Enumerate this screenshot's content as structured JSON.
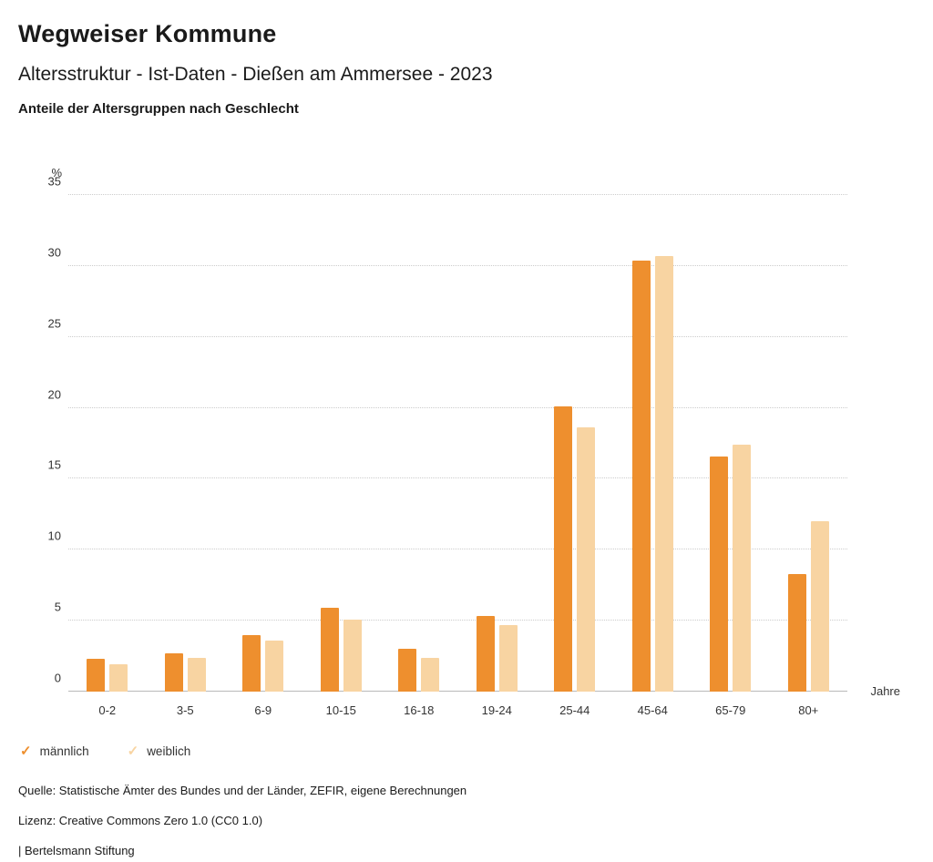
{
  "header": {
    "title": "Wegweiser Kommune",
    "subtitle": "Altersstruktur - Ist-Daten - Dießen am Ammersee - 2023",
    "caption": "Anteile der Altersgruppen nach Geschlecht"
  },
  "chart_data": {
    "type": "bar",
    "categories": [
      "0-2",
      "3-5",
      "6-9",
      "10-15",
      "16-18",
      "19-24",
      "25-44",
      "45-64",
      "65-79",
      "80+"
    ],
    "series": [
      {
        "name": "männlich",
        "color": "#ee8f2e",
        "values": [
          2.3,
          2.7,
          4.0,
          5.9,
          3.0,
          5.3,
          20.1,
          30.4,
          16.6,
          8.3
        ]
      },
      {
        "name": "weiblich",
        "color": "#f8d4a2",
        "values": [
          1.9,
          2.4,
          3.6,
          5.1,
          2.4,
          4.7,
          18.6,
          30.7,
          17.4,
          12.0
        ]
      }
    ],
    "title": "Anteile der Altersgruppen nach Geschlecht",
    "xlabel": "Jahre",
    "ylabel": "%",
    "ylim": [
      0,
      35
    ],
    "yticks": [
      0,
      5,
      10,
      15,
      20,
      25,
      30,
      35
    ],
    "grid": true,
    "legend_position": "bottom"
  },
  "footer": {
    "source": "Quelle: Statistische Ämter des Bundes und der Länder, ZEFIR, eigene Berechnungen",
    "license": "Lizenz: Creative Commons Zero 1.0 (CC0 1.0)",
    "brand": "| Bertelsmann Stiftung"
  }
}
